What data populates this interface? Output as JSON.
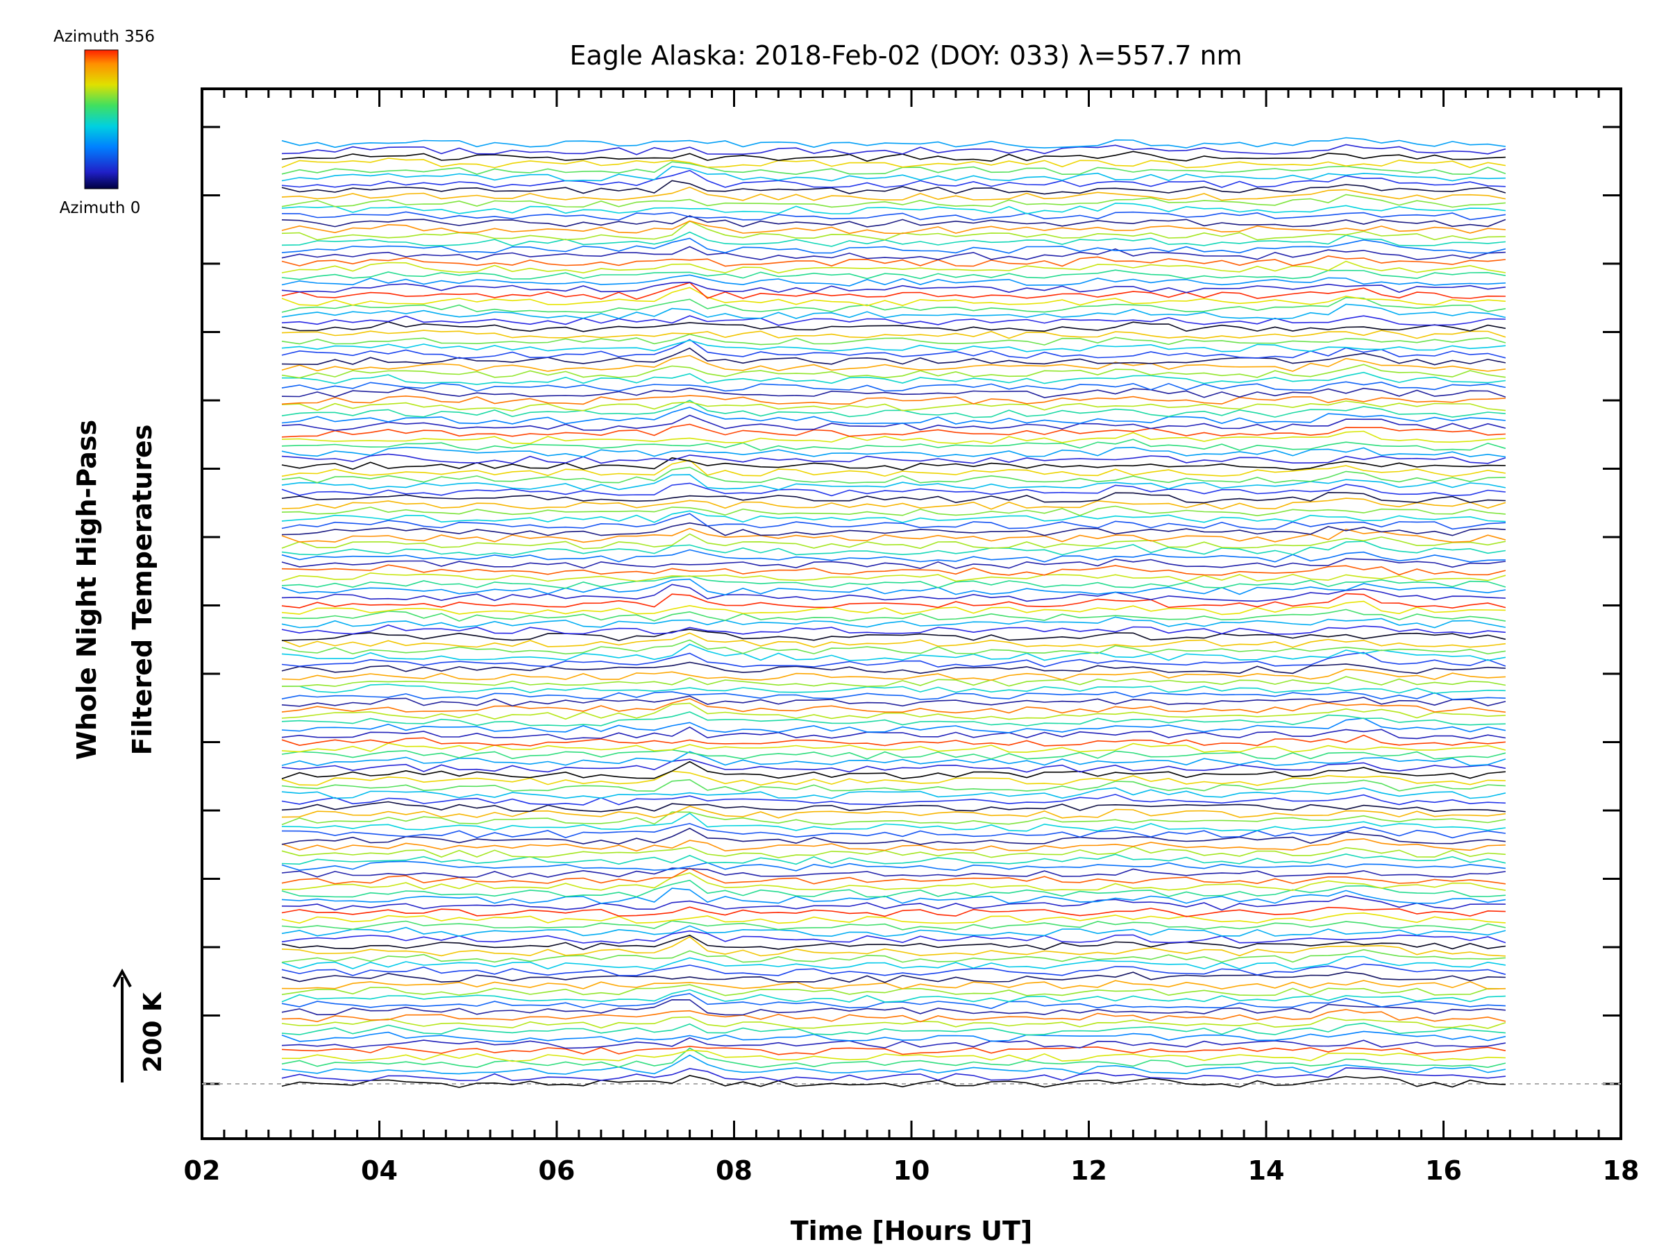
{
  "chart_data": {
    "type": "line",
    "title": "Eagle Alaska: 2018-Feb-02 (DOY: 033) λ=557.7 nm",
    "xlabel": "Time [Hours UT]",
    "ylabel_lines": [
      "Whole Night High-Pass",
      "Filtered Temperatures"
    ],
    "xlim": [
      2,
      18
    ],
    "x_tick_labels": [
      "02",
      "04",
      "06",
      "08",
      "10",
      "12",
      "14",
      "16",
      "18"
    ],
    "x_tick_values": [
      2,
      4,
      6,
      8,
      10,
      12,
      14,
      16,
      18
    ],
    "x_range_data": [
      2.9,
      16.8
    ],
    "n_series": 144,
    "azimuth_range": [
      0,
      356
    ],
    "features": [
      {
        "x": 7.45,
        "amp": 1.6
      },
      {
        "x": 15.0,
        "amp": 1.0
      },
      {
        "x": 12.4,
        "amp": 0.5
      },
      {
        "x": 4.2,
        "amp": 0.4
      }
    ],
    "scale_bar": {
      "label": "200 K",
      "arrow": "up"
    },
    "colorbar": {
      "top_label": "Azimuth 356",
      "bottom_label": "Azimuth 0",
      "colormap": "rainbow"
    },
    "grid": false,
    "baseline_dashed": true
  },
  "colors": {
    "axis": "#000000",
    "baseline": "#aaaaaa",
    "rainbow_stops": [
      "#000000",
      "#2020c8",
      "#0060ff",
      "#00c0ff",
      "#00e0a0",
      "#80e040",
      "#e0e000",
      "#ffa000",
      "#ff3000"
    ]
  }
}
